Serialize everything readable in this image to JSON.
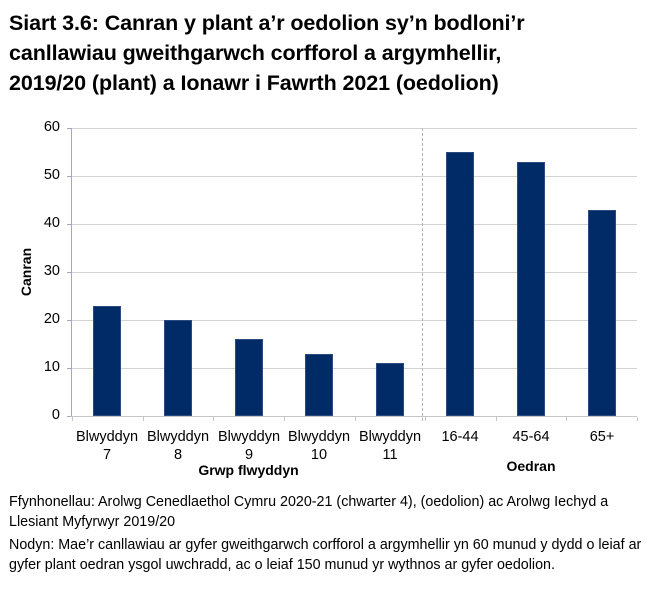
{
  "title": {
    "line1": "Siart 3.6: Canran y plant a’r oedolion sy’n bodloni’r",
    "line2": "canllawiau gweithgarwch corfforol a argymhellir,",
    "line3": "2019/20 (plant) a Ionawr i Fawrth 2021 (oedolion)"
  },
  "axes": {
    "ylabel": "Canran",
    "yticks": [
      "60",
      "50",
      "40",
      "30",
      "20",
      "10",
      "0"
    ],
    "group_labels": {
      "children": "Grwp flwyddyn",
      "adults": "Oedran"
    },
    "categories": [
      {
        "line1": "Blwyddyn",
        "line2": "7"
      },
      {
        "line1": "Blwyddyn",
        "line2": "8"
      },
      {
        "line1": "Blwyddyn",
        "line2": "9"
      },
      {
        "line1": "Blwyddyn",
        "line2": "10"
      },
      {
        "line1": "Blwyddyn",
        "line2": "11"
      },
      {
        "line1": "16-44",
        "line2": ""
      },
      {
        "line1": "45-64",
        "line2": ""
      },
      {
        "line1": "65+",
        "line2": ""
      }
    ]
  },
  "colors": {
    "bar": "#002B66",
    "gridline": "#D3D3D3",
    "separator": "#B4B4B4"
  },
  "notes": {
    "sources": "Ffynhonellau: Arolwg Cenedlaethol Cymru 2020-21 (chwarter 4), (oedolion) ac Arolwg Iechyd a Llesiant Myfyrwyr 2019/20",
    "note": "Nodyn: Mae’r canllawiau ar gyfer gweithgarwch corfforol a argymhellir yn 60 munud y dydd o leiaf ar gyfer plant oedran ysgol uwchradd, ac o leiaf 150 munud yr wythnos ar gyfer oedolion."
  },
  "chart_data": {
    "type": "bar",
    "title": "Siart 3.6: Canran y plant a’r oedolion sy’n bodloni’r canllawiau gweithgarwch corfforol a argymhellir, 2019/20 (plant) a Ionawr i Fawrth 2021 (oedolion)",
    "categories": [
      "Blwyddyn 7",
      "Blwyddyn 8",
      "Blwyddyn 9",
      "Blwyddyn 10",
      "Blwyddyn 11",
      "16-44",
      "45-64",
      "65+"
    ],
    "category_groups": [
      {
        "name": "Grwp flwyddyn",
        "categories": [
          "Blwyddyn 7",
          "Blwyddyn 8",
          "Blwyddyn 9",
          "Blwyddyn 10",
          "Blwyddyn 11"
        ]
      },
      {
        "name": "Oedran",
        "categories": [
          "16-44",
          "45-64",
          "65+"
        ]
      }
    ],
    "values": [
      23,
      20,
      16,
      13,
      11,
      55,
      53,
      43
    ],
    "xlabel": "",
    "ylabel": "Canran",
    "ylim": [
      0,
      60
    ],
    "yticks": [
      0,
      10,
      20,
      30,
      40,
      50,
      60
    ],
    "grid": "horizontal",
    "legend": "none",
    "annotations": [
      "dashed vertical separator between Blwyddyn 11 and 16-44"
    ]
  }
}
